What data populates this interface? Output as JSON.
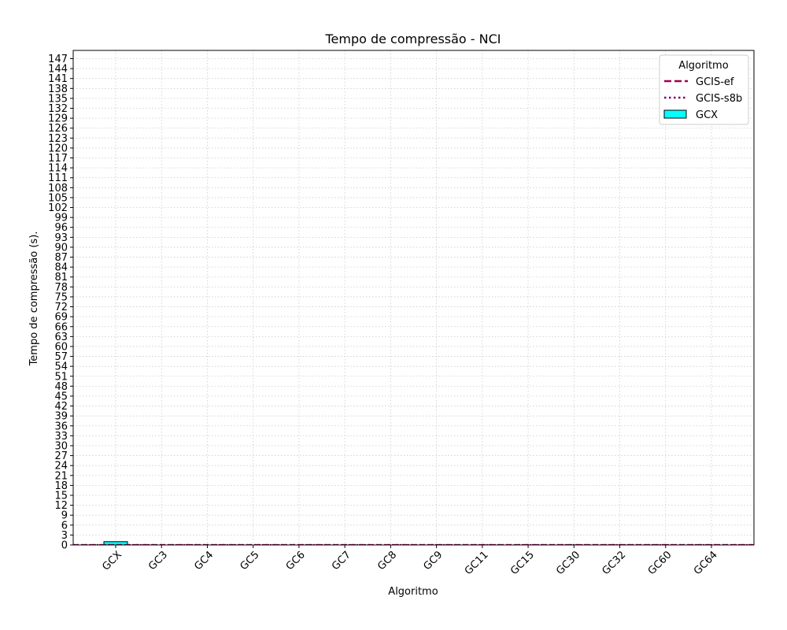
{
  "chart_data": {
    "type": "bar",
    "title": "Tempo de compressão -  NCI",
    "xlabel": "Algoritmo",
    "ylabel": "Tempo de compressão (s).",
    "categories": [
      "GCX",
      "GC3",
      "GC4",
      "GC5",
      "GC6",
      "GC7",
      "GC8",
      "GC9",
      "GC11",
      "GC15",
      "GC30",
      "GC32",
      "GC60",
      "GC64"
    ],
    "series": [
      {
        "name": "GCX",
        "type": "bar",
        "color": "#00ffff",
        "values": [
          1.0,
          0,
          0,
          0,
          0,
          0,
          0,
          0,
          0,
          0,
          0,
          0,
          0,
          0
        ]
      }
    ],
    "reference_lines": [
      {
        "name": "GCIS-ef",
        "value": 0.1,
        "style": "dashed",
        "color": "#a0004a"
      },
      {
        "name": "GCIS-s8b",
        "value": 0.1,
        "style": "dotted",
        "color": "#7a0060"
      }
    ],
    "ylim": [
      0,
      149.5
    ],
    "yticks": [
      0,
      3,
      6,
      9,
      12,
      15,
      18,
      21,
      24,
      27,
      30,
      33,
      36,
      39,
      42,
      45,
      48,
      51,
      54,
      57,
      60,
      63,
      66,
      69,
      72,
      75,
      78,
      81,
      84,
      87,
      90,
      93,
      96,
      99,
      102,
      105,
      108,
      111,
      114,
      117,
      120,
      123,
      126,
      129,
      132,
      135,
      138,
      141,
      144,
      147
    ],
    "grid": true,
    "legend": {
      "title": "Algoritmo",
      "position": "top-right",
      "entries": [
        "GCIS-ef",
        "GCIS-s8b",
        "GCX"
      ]
    }
  }
}
